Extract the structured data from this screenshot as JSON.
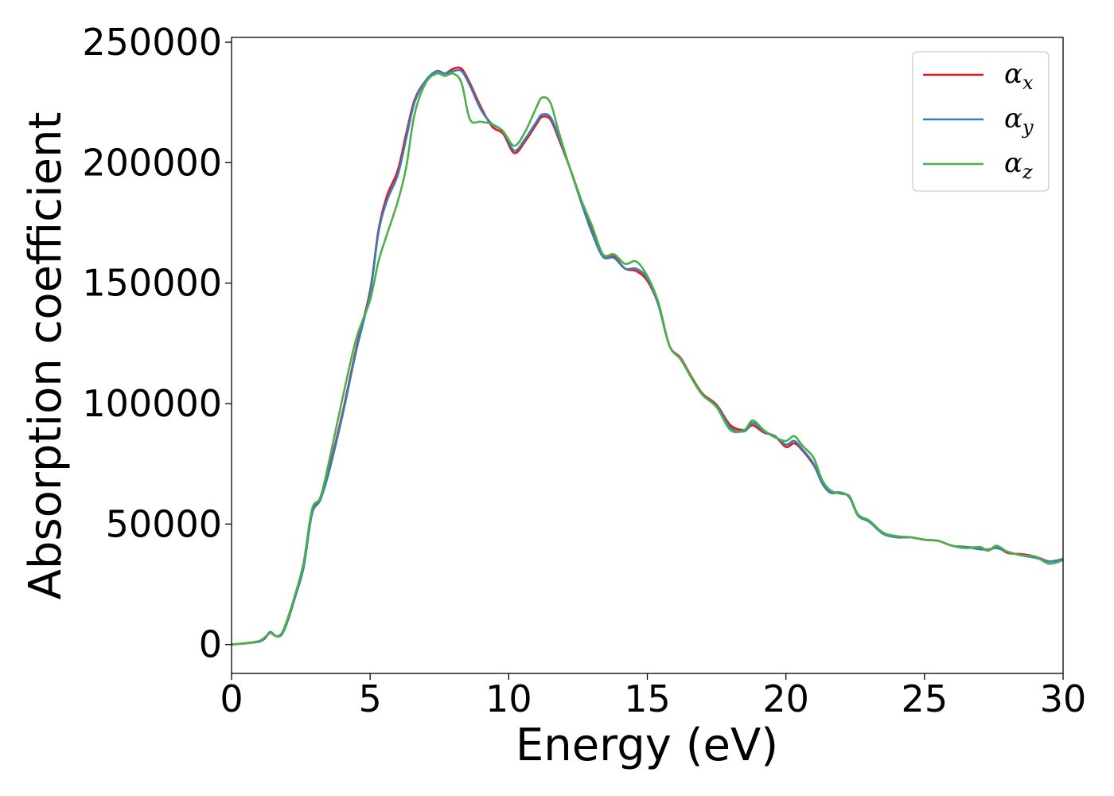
{
  "chart_data": {
    "type": "line",
    "title": "",
    "xlabel": "Energy (eV)",
    "ylabel": "Absorption coefficient",
    "xlim": [
      0,
      30
    ],
    "ylim": [
      -12000,
      252000
    ],
    "x_ticks": [
      "0",
      "5",
      "10",
      "15",
      "20",
      "25",
      "30"
    ],
    "y_ticks": [
      "0",
      "50000",
      "100000",
      "150000",
      "200000",
      "250000"
    ],
    "grid": false,
    "legend_position": "top-right",
    "x": [
      0,
      0.5,
      1,
      1.2,
      1.4,
      1.6,
      1.8,
      2,
      2.3,
      2.6,
      2.9,
      3.2,
      3.5,
      4,
      4.5,
      5,
      5.3,
      5.6,
      6,
      6.3,
      6.6,
      7,
      7.4,
      7.7,
      8,
      8.3,
      8.6,
      9,
      9.4,
      9.8,
      10.2,
      10.6,
      11,
      11.2,
      11.5,
      11.8,
      12.2,
      12.6,
      13,
      13.4,
      13.8,
      14.2,
      14.6,
      15,
      15.4,
      15.8,
      16.2,
      16.6,
      17,
      17.5,
      18,
      18.5,
      18.8,
      19.2,
      19.6,
      20,
      20.3,
      20.6,
      21,
      21.3,
      21.6,
      22,
      22.3,
      22.6,
      23,
      23.5,
      24,
      24.5,
      25,
      25.5,
      26,
      26.5,
      27,
      27.3,
      27.6,
      28,
      28.5,
      29,
      29.5,
      30
    ],
    "series": [
      {
        "name": "x",
        "color": "#e41a1c",
        "values": [
          0,
          500,
          1200,
          2500,
          5000,
          3500,
          4000,
          9000,
          20000,
          33000,
          55000,
          60000,
          72000,
          96000,
          123000,
          147000,
          172000,
          186000,
          197000,
          212000,
          226000,
          234000,
          238000,
          237000,
          239000,
          239000,
          233000,
          223000,
          215000,
          212000,
          204000,
          209000,
          216000,
          219000,
          218000,
          210000,
          198000,
          185000,
          172000,
          161000,
          161000,
          156000,
          155000,
          151000,
          141000,
          124000,
          119000,
          111000,
          104000,
          99500,
          91000,
          89000,
          91000,
          88000,
          86500,
          82000,
          83500,
          80500,
          74500,
          67500,
          63500,
          63000,
          61000,
          54000,
          51000,
          46500,
          44500,
          44500,
          43500,
          43000,
          41000,
          40500,
          40000,
          39000,
          40500,
          38000,
          37500,
          36500,
          34500,
          35500
        ]
      },
      {
        "name": "y",
        "color": "#377eb8",
        "values": [
          0,
          500,
          1200,
          2800,
          5200,
          3500,
          4000,
          9000,
          20000,
          32000,
          54000,
          60000,
          71000,
          95000,
          122000,
          146000,
          171000,
          184000,
          195000,
          210000,
          225000,
          234000,
          238000,
          237000,
          238000,
          238000,
          232000,
          222000,
          216000,
          213000,
          205000,
          210000,
          217000,
          220000,
          219000,
          211000,
          198000,
          184000,
          171000,
          161000,
          160500,
          156000,
          156000,
          152000,
          141000,
          124000,
          118500,
          110500,
          103500,
          99000,
          90000,
          88500,
          92000,
          88500,
          86500,
          83000,
          84500,
          81000,
          75000,
          67000,
          63000,
          63000,
          61000,
          53500,
          51000,
          46000,
          44500,
          44500,
          43500,
          43000,
          41000,
          40500,
          39500,
          39500,
          40000,
          38500,
          37000,
          36000,
          34500,
          35500
        ]
      },
      {
        "name": "z",
        "color": "#4daf4a",
        "values": [
          0,
          500,
          1500,
          3000,
          4800,
          3500,
          4500,
          10000,
          21000,
          34000,
          56000,
          61000,
          75000,
          102000,
          127000,
          143000,
          159000,
          170000,
          184000,
          198000,
          220000,
          233000,
          237000,
          236000,
          237000,
          233000,
          218000,
          217000,
          216000,
          213000,
          207000,
          213000,
          223000,
          227000,
          225000,
          213000,
          198000,
          185000,
          174000,
          162000,
          162000,
          158000,
          159000,
          153000,
          142000,
          124000,
          118500,
          110500,
          103500,
          98500,
          89000,
          89000,
          93000,
          89000,
          86000,
          84500,
          86500,
          82500,
          77500,
          68500,
          64000,
          62500,
          61500,
          54000,
          51500,
          46500,
          45000,
          44500,
          43500,
          43000,
          41000,
          40000,
          40500,
          39000,
          41000,
          38500,
          37000,
          36500,
          33500,
          35000
        ]
      }
    ]
  },
  "legend": [
    {
      "symbol": "α",
      "subscript": "x",
      "color": "#e41a1c"
    },
    {
      "symbol": "α",
      "subscript": "y",
      "color": "#377eb8"
    },
    {
      "symbol": "α",
      "subscript": "z",
      "color": "#4daf4a"
    }
  ]
}
